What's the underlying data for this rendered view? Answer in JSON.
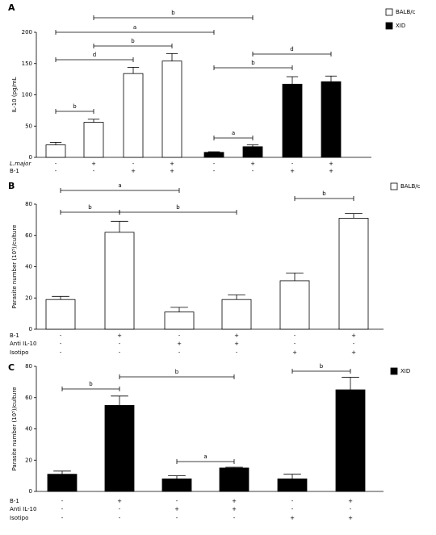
{
  "chart_data": [
    {
      "type": "bar",
      "title": "A",
      "y_label": "IL-10 (pg/mL",
      "ylim": [
        0,
        200
      ],
      "yticks": [
        0,
        50,
        100,
        150,
        200
      ],
      "series": [
        {
          "name": "BALB/c",
          "color": "#ffffff",
          "values": [
            20,
            56,
            134,
            154,
            null,
            null,
            null,
            null
          ],
          "errors": [
            4,
            5,
            10,
            12,
            null,
            null,
            null,
            null
          ]
        },
        {
          "name": "XID",
          "color": "#000000",
          "values": [
            null,
            null,
            null,
            null,
            8,
            17,
            117,
            121
          ],
          "errors": [
            null,
            null,
            null,
            null,
            1,
            3,
            12,
            9
          ]
        }
      ],
      "rows": [
        {
          "label": "L.major",
          "values": [
            "-",
            "+",
            "-",
            "+",
            "-",
            "+",
            "-",
            "+"
          ]
        },
        {
          "label": "B-1",
          "values": [
            "-",
            "-",
            "+",
            "+",
            "-",
            "-",
            "+",
            "+"
          ]
        }
      ],
      "annotations": [
        "b",
        "a",
        "b",
        "d",
        "b",
        "d",
        "b",
        "a"
      ]
    },
    {
      "type": "bar",
      "title": "B",
      "y_label": "Parasite number (10⁵)/culture",
      "ylim": [
        0,
        80
      ],
      "yticks": [
        0,
        20,
        40,
        60,
        80
      ],
      "series": [
        {
          "name": "BALB/c",
          "color": "#ffffff",
          "values": [
            19,
            62,
            11,
            19,
            31,
            71
          ],
          "errors": [
            2,
            7,
            3,
            3,
            5,
            3
          ]
        }
      ],
      "rows": [
        {
          "label": "B-1",
          "values": [
            "-",
            "+",
            "-",
            "+",
            "-",
            "+"
          ]
        },
        {
          "label": "Anti IL-10",
          "values": [
            "-",
            "-",
            "+",
            "+",
            "-",
            "-"
          ]
        },
        {
          "label": "Isotipo",
          "values": [
            "-",
            "-",
            "-",
            "-",
            "+",
            "+"
          ]
        }
      ],
      "annotations": [
        "a",
        "b",
        "b",
        "b"
      ]
    },
    {
      "type": "bar",
      "title": "C",
      "y_label": "Parasite number (10⁵)/culture",
      "ylim": [
        0,
        80
      ],
      "yticks": [
        0,
        20,
        40,
        60,
        80
      ],
      "series": [
        {
          "name": "XID",
          "color": "#000000",
          "values": [
            11,
            55,
            8,
            15,
            8,
            65
          ],
          "errors": [
            2,
            6,
            2,
            0.5,
            3,
            8
          ]
        }
      ],
      "rows": [
        {
          "label": "B-1",
          "values": [
            "-",
            "+",
            "-",
            "+",
            "-",
            "+"
          ]
        },
        {
          "label": "Anti IL-10",
          "values": [
            "-",
            "-",
            "+",
            "+",
            "-",
            "-"
          ]
        },
        {
          "label": "Isotipo",
          "values": [
            "-",
            "-",
            "-",
            "-",
            "+",
            "+"
          ]
        }
      ],
      "annotations": [
        "b",
        "b",
        "a",
        "b"
      ]
    }
  ]
}
